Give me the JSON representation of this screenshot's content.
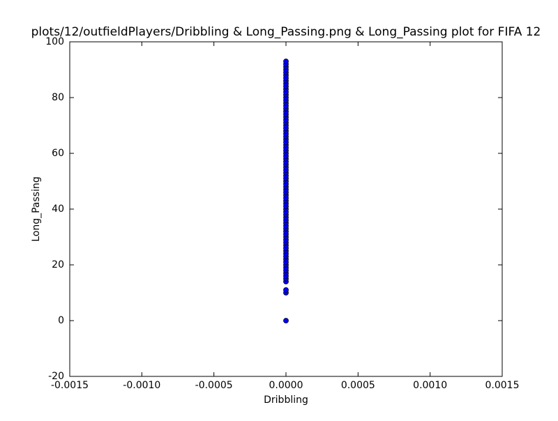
{
  "chart_data": {
    "type": "scatter",
    "title": "plots/12/outfieldPlayers/Dribbling & Long_Passing.png & Long_Passing plot for FIFA 12",
    "x_label": "Dribbling",
    "y_label": "Long_Passing",
    "color": "#0000ff",
    "x": [
      0,
      0,
      0,
      0,
      0,
      0,
      0,
      0,
      0,
      0,
      0,
      0,
      0,
      0,
      0,
      0,
      0,
      0,
      0,
      0,
      0,
      0,
      0,
      0,
      0,
      0,
      0,
      0,
      0,
      0,
      0,
      0,
      0,
      0,
      0,
      0,
      0,
      0,
      0,
      0,
      0,
      0,
      0,
      0,
      0,
      0,
      0,
      0,
      0,
      0,
      0,
      0,
      0,
      0,
      0,
      0,
      0,
      0,
      0,
      0,
      0,
      0,
      0,
      0,
      0,
      0,
      0,
      0,
      0,
      0,
      0,
      0,
      0,
      0,
      0,
      0,
      0,
      0,
      0,
      0,
      0,
      0,
      0
    ],
    "y": [
      0,
      10,
      11,
      14,
      15,
      16,
      17,
      18,
      19,
      20,
      21,
      22,
      23,
      24,
      25,
      26,
      27,
      28,
      29,
      30,
      31,
      32,
      33,
      34,
      35,
      36,
      37,
      38,
      39,
      40,
      41,
      42,
      43,
      44,
      45,
      46,
      47,
      48,
      49,
      50,
      51,
      52,
      53,
      54,
      55,
      56,
      57,
      58,
      59,
      60,
      61,
      62,
      63,
      64,
      65,
      66,
      67,
      68,
      69,
      70,
      71,
      72,
      73,
      74,
      75,
      76,
      77,
      78,
      79,
      80,
      81,
      82,
      83,
      84,
      85,
      86,
      87,
      88,
      89,
      90,
      91,
      92,
      93
    ],
    "xlim": [
      -0.0015,
      0.0015
    ],
    "xticks": [
      {
        "value": -0.0015,
        "label": "-0.0015"
      },
      {
        "value": -0.001,
        "label": "-0.0010"
      },
      {
        "value": -0.0005,
        "label": "-0.0005"
      },
      {
        "value": 0,
        "label": "0.0000"
      },
      {
        "value": 0.0005,
        "label": "0.0005"
      },
      {
        "value": 0.001,
        "label": "0.0010"
      },
      {
        "value": 0.0015,
        "label": "0.0015"
      }
    ],
    "ylim": [
      -20,
      100
    ],
    "yticks": [
      -20,
      0,
      20,
      40,
      60,
      80,
      100
    ]
  }
}
